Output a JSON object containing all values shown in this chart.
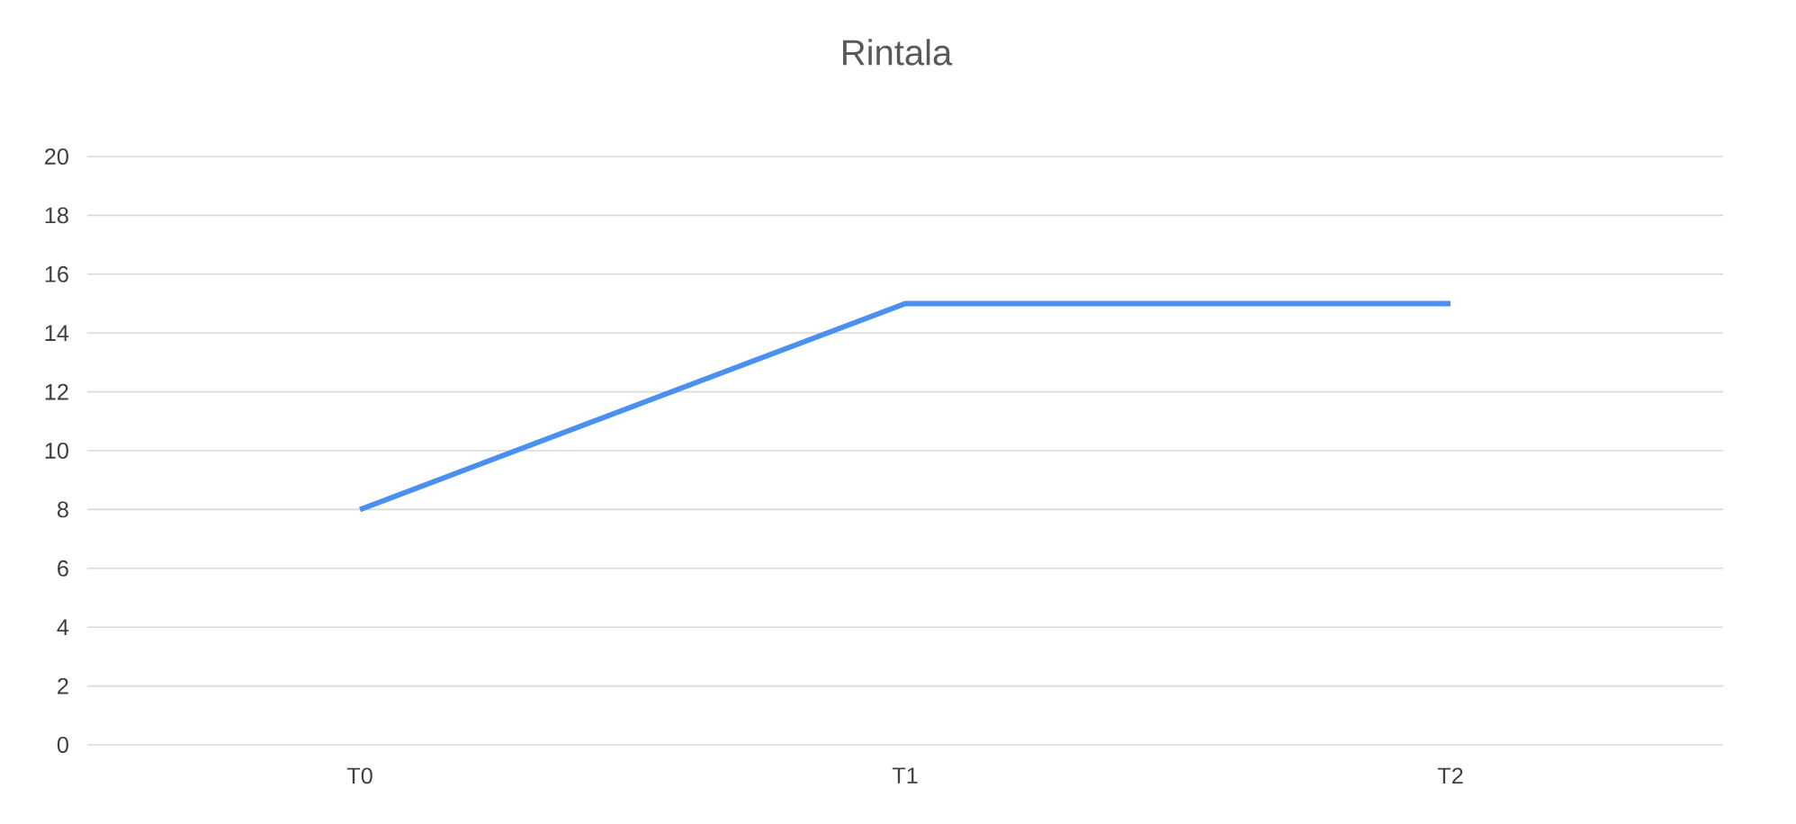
{
  "chart_data": {
    "type": "line",
    "title": "Rintala",
    "categories": [
      "T0",
      "T1",
      "T2"
    ],
    "values": [
      8,
      15,
      15
    ],
    "color": "#4a90f0",
    "ylim": [
      0,
      20
    ],
    "yticks": [
      0,
      2,
      4,
      6,
      8,
      10,
      12,
      14,
      16,
      18,
      20
    ],
    "grid": "y"
  }
}
